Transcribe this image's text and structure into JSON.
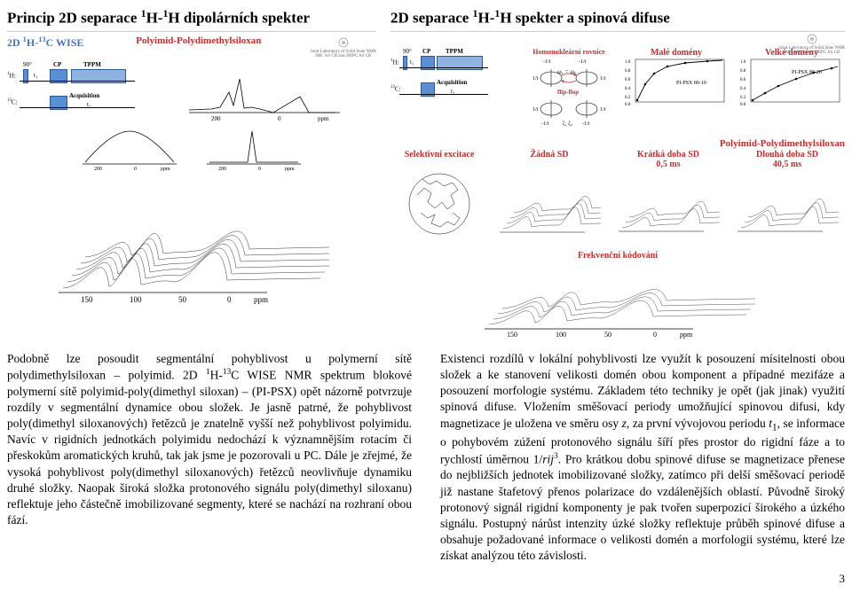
{
  "left": {
    "title_html": "Princip 2D separace <sup>1</sup>H-<sup>1</sup>H dipolárních spekter",
    "experiment": "2D <sup>1</sup>H-<sup>13</sup>C WISE",
    "sample": "Polyimid-Polydimethylsiloxan",
    "logo1": "Joint Laboratory of Solid State NMR",
    "logo2": "IMC AS CR and JHIPC AS CR",
    "pulse": {
      "H": "<sup>1</sup>H:",
      "C": "<sup>13</sup>C:",
      "ninety": "90°",
      "t1": "t₁",
      "cp": "CP",
      "tppm": "TPPM",
      "acq": "Acquisition",
      "t2": "t₂"
    },
    "spectrum1d_ticks": [
      "200",
      "0",
      "ppm"
    ],
    "spectra_ticks": [
      "200",
      "0",
      "ppm"
    ],
    "threed_ticks": [
      "150",
      "100",
      "50",
      "0",
      "ppm"
    ]
  },
  "right": {
    "title_html": "2D separace <sup>1</sup>H-<sup>1</sup>H spekter a spinová difuse",
    "logo1": "Joint Laboratory of Solid State NMR",
    "logo2": "IMC AS CR and JHIPC AS CR",
    "circle": {
      "title": "Homonukleární rovnice",
      "label_top": "-1/t",
      "label_top2": "-1/t",
      "label_eq": "ω₁ = ω₀",
      "label_side": "1/t",
      "label_side2": "1/t",
      "flip": "flip-flop",
      "b1": "-1/t",
      "b2": "ξ₁ ξ₂",
      "b3": "-1/t"
    },
    "domains": {
      "small": "Malé domény",
      "large": "Velké domény"
    },
    "chart1": "PI-PSX 80-10",
    "chart2": "PI-PSX 80-20",
    "chart_y": [
      "1.0",
      "0.8",
      "0.6",
      "0.4",
      "0.2",
      "0.0"
    ],
    "bottom_sample": "Polyimid-Polydimethylsiloxan",
    "sel_exc": "Selektivní excitace",
    "no_sd": "Žádná SD",
    "short_sd": "Krátká doba SD",
    "short_sd_t": "0,5 ms",
    "long_sd": "Dlouhá doba SD",
    "long_sd_t": "40,5 ms",
    "freq_enc": "Frekvenční kódování",
    "threed_ticks": [
      "150",
      "100",
      "50",
      "0",
      "ppm"
    ]
  },
  "body": {
    "left_html": "Podobně lze posoudit segmentální pohyblivost u polymerní sítě polydimethylsiloxan – polyimid. 2D <sup>1</sup>H-<sup>13</sup>C WISE NMR spektrum blokové polymerní sítě polyimid-poly(dimethyl siloxan) – (PI-PSX) opět názorně potvrzuje rozdíly v segmentální dynamice obou složek. Je jasně patrné, že pohyblivost poly(dimethyl siloxanových) řetězců je znatelně vyšší než pohyblivost polyimidu. Navíc v rigidních jednotkách polyimidu nedochází k významnějším rotacím či přeskokům aromatických kruhů, tak jak jsme je pozorovali u PC. Dále je zřejmé, že vysoká pohyblivost poly(dimethyl siloxanových) řetězců neovlivňuje dynamiku druhé složky. Naopak široká složka protonového signálu poly(dimethyl siloxanu) reflektuje jeho částečně imobilizované segmenty, které se nachází na rozhraní obou fází.",
    "right_html": "Existenci rozdílů v lokální pohyblivosti lze využít k posouzení mísitelnosti obou složek a ke stanovení velikosti domén obou komponent a případné mezifáze a posouzení morfologie systému. Základem této techniky je opět (jak jinak) využití spinová difuse. Vložením směšovací periody umožňující spinovou difusi, kdy magnetizace je uložena ve směru osy <i>z</i>, za první vývojovou periodu <i>t</i><sub>1</sub>, se informace o pohybovém zúžení protonového signálu šíří přes prostor do rigidní fáze a to rychlostí úměrnou 1/<i>rij</i><sup>3</sup>. Pro krátkou dobu spinové difuse se magnetizace přenese do nejbližších jednotek imobilizované složky, zatímco při delší směšovací periodě již nastane štafetový přenos polarizace do vzdálenějších oblastí. Původně široký protonový signál rigidní komponenty je pak tvořen superpozicí širokého a úzkého signálu. Postupný nárůst intenzity úzké složky reflektuje průběh spinové difuse a obsahuje požadované informace o velikosti domén a morfologii systému, které lze získat analýzou této závislosti."
  },
  "page": "3",
  "colors": {
    "blue": "#4674c2",
    "red": "#c03030",
    "pulseFill": "#5a8fd4",
    "gray": "#888"
  }
}
